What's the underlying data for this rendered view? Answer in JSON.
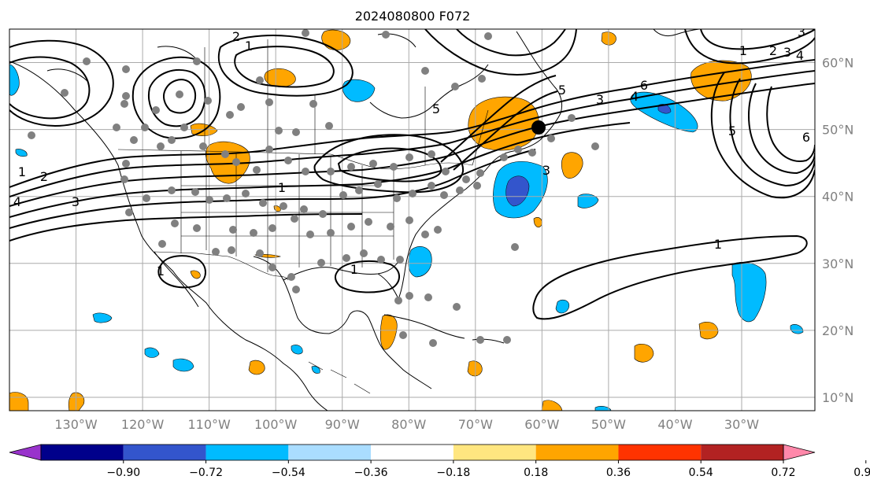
{
  "title": "2024080800 F072",
  "map": {
    "lon_range": [
      -140,
      -19
    ],
    "lat_range": [
      8,
      65
    ],
    "latitude_labels": [
      "10°N",
      "20°N",
      "30°N",
      "40°N",
      "50°N",
      "60°N"
    ],
    "longitude_labels": [
      "130°W",
      "120°W",
      "110°W",
      "100°W",
      "90°W",
      "80°W",
      "70°W",
      "60°W",
      "50°W",
      "40°W",
      "30°W"
    ],
    "gridlines": true,
    "contour_labels": [
      "1",
      "2",
      "3",
      "4",
      "5",
      "6"
    ],
    "station_marker_color": "#808080",
    "highlight_marker_color": "#000000"
  },
  "colorbar": {
    "ticks": [
      "−0.90",
      "−0.72",
      "−0.54",
      "−0.36",
      "−0.18",
      "0.18",
      "0.36",
      "0.54",
      "0.72",
      "0.90"
    ],
    "colors": [
      "#9933cc",
      "#00008b",
      "#3355cc",
      "#00bbff",
      "#aaddff",
      "#ffffff",
      "#ffe680",
      "#ffa500",
      "#ff3300",
      "#b22222",
      "#ff88aa"
    ],
    "extend": "both"
  }
}
